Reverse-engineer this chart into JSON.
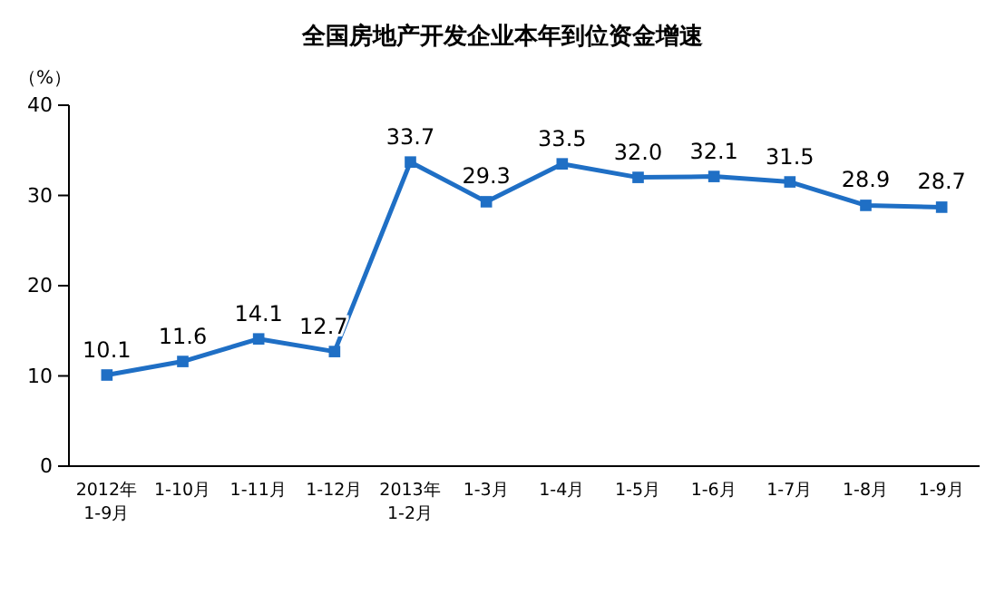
{
  "chart_data": {
    "type": "line",
    "title": "全国房地产开发企业本年到位资金增速",
    "ylabel": "（%）",
    "categories": [
      "2012年\n1-9月",
      "1-10月",
      "1-11月",
      "1-12月",
      "2013年\n1-2月",
      "1-3月",
      "1-4月",
      "1-5月",
      "1-6月",
      "1-7月",
      "1-8月",
      "1-9月"
    ],
    "series": [
      {
        "color": "#1f6fc5",
        "values": [
          10.1,
          11.6,
          14.1,
          12.7,
          33.7,
          29.3,
          33.5,
          32.0,
          32.1,
          31.5,
          28.9,
          28.7
        ],
        "value_labels": [
          "10.1",
          "11.6",
          "14.1",
          "12.7",
          "33.7",
          "29.3",
          "33.5",
          "32.0",
          "32.1",
          "31.5",
          "28.9",
          "28.7"
        ]
      }
    ],
    "ylim": [
      0,
      40
    ],
    "yticks": [
      0,
      10,
      20,
      30,
      40
    ],
    "marker": "square"
  }
}
